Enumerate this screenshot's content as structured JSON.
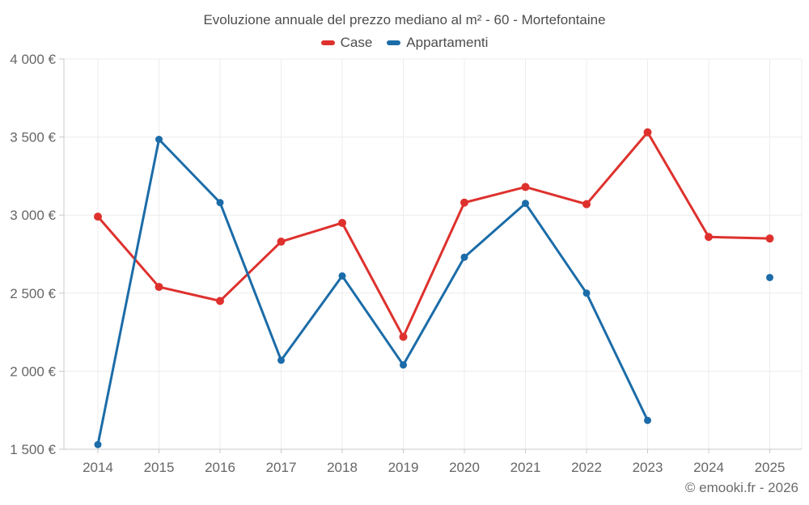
{
  "title": "Evoluzione annuale del prezzo mediano al m² - 60 - Mortefontaine",
  "legend": {
    "items": [
      {
        "label": "Case",
        "color": "#de312d"
      },
      {
        "label": "Appartamenti",
        "color": "#1b6ca8"
      }
    ]
  },
  "footer": {
    "credit": "© emooki.fr - 2026"
  },
  "chart_data": {
    "type": "line",
    "title": "Evoluzione annuale del prezzo mediano al m² - 60 - Mortefontaine",
    "x": [
      2014,
      2015,
      2016,
      2017,
      2018,
      2019,
      2020,
      2021,
      2022,
      2023,
      2024,
      2025
    ],
    "series": [
      {
        "name": "Case",
        "color": "#de312d",
        "marker_radius": 5,
        "values": [
          2990,
          2540,
          2450,
          2830,
          2950,
          2220,
          3080,
          3180,
          3070,
          3530,
          2860,
          2850
        ]
      },
      {
        "name": "Appartamenti",
        "color": "#1b6ca8",
        "marker_radius": 4.5,
        "values": [
          1530,
          3485,
          3080,
          2070,
          2610,
          2040,
          2730,
          3075,
          2500,
          1685,
          null,
          2600
        ]
      }
    ],
    "xlabel": "",
    "ylabel": "",
    "ylim": [
      1500,
      4000
    ],
    "ytick_step": 500,
    "ytick_labels": [
      "1 500 €",
      "2 000 €",
      "2 500 €",
      "3 000 €",
      "3 500 €",
      "4 000 €"
    ],
    "currency": "€",
    "grid": true,
    "grid_color": "#ececec",
    "axis_color": "#c9c9c9",
    "label_color": "#666666",
    "legend_position": "top"
  }
}
